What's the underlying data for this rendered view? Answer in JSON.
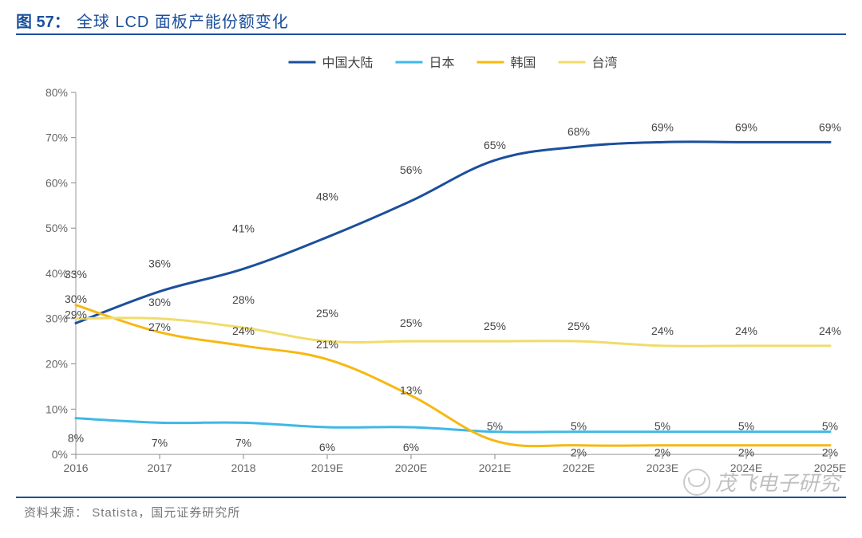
{
  "header": {
    "figure_number": "图 57：",
    "title": "全球 LCD 面板产能份额变化"
  },
  "chart": {
    "type": "line",
    "background_color": "#ffffff",
    "line_width": 3,
    "y_axis": {
      "min": 0,
      "max": 80,
      "step": 10,
      "suffix": "%",
      "ticks": [
        0,
        10,
        20,
        30,
        40,
        50,
        60,
        70,
        80
      ]
    },
    "x_axis": {
      "categories": [
        "2016",
        "2017",
        "2018",
        "2019E",
        "2020E",
        "2021E",
        "2022E",
        "2023E",
        "2024E",
        "2025E"
      ]
    },
    "legend": {
      "position": "top-center",
      "marker_length": 34
    },
    "series": [
      {
        "key": "cn",
        "name": "中国大陆",
        "color": "#1b4f9c",
        "values": [
          29,
          36,
          41,
          48,
          56,
          65,
          68,
          69,
          69,
          69
        ]
      },
      {
        "key": "jp",
        "name": "日本",
        "color": "#3fb8e7",
        "values": [
          8,
          7,
          7,
          6,
          6,
          5,
          5,
          5,
          5,
          5
        ]
      },
      {
        "key": "kr",
        "name": "韩国",
        "color": "#f6b812",
        "values": [
          33,
          27,
          24,
          21,
          13,
          3,
          2,
          2,
          2,
          2
        ]
      },
      {
        "key": "tw",
        "name": "台湾",
        "color": "#f1dc6b",
        "values": [
          30,
          30,
          28,
          25,
          25,
          25,
          25,
          24,
          24,
          24
        ]
      }
    ],
    "data_labels": {
      "cn": [
        "29%",
        "36%",
        "41%",
        "48%",
        "56%",
        "65%",
        "68%",
        "69%",
        "69%",
        "69%"
      ],
      "jp": [
        "8%",
        "7%",
        "7%",
        "6%",
        "6%",
        "5%",
        "5%",
        "5%",
        "5%",
        "5%"
      ],
      "kr": [
        "33%",
        "27%",
        "24%",
        "21%",
        "13%",
        "",
        "2%",
        "2%",
        "2%",
        "2%"
      ],
      "tw": [
        "30%",
        "30%",
        "28%",
        "25%",
        "25%",
        "25%",
        "25%",
        "24%",
        "24%",
        "24%"
      ]
    }
  },
  "footer": {
    "source_label": "资料来源：",
    "source_value": "Statista，国元证券研究所"
  },
  "watermark": {
    "text": "茂飞电子研究"
  }
}
